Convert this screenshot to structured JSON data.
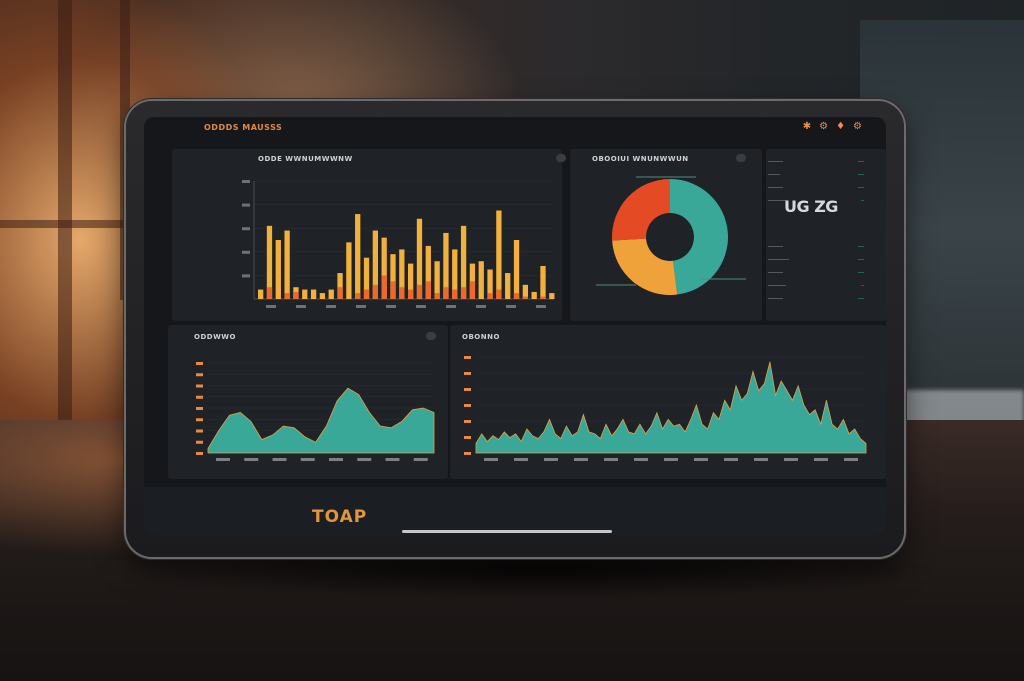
{
  "header": {
    "app_title": "ODDDS MAUSSS",
    "icons": [
      "gear-icon",
      "bell-icon",
      "user-icon",
      "menu-icon"
    ],
    "icon_glyphs": [
      "✱",
      "⚙",
      "♦",
      "⚙"
    ]
  },
  "sidebar": {
    "items": [
      {
        "label": "━━━━━",
        "active": true
      },
      {
        "label": "─────",
        "active": false
      },
      {
        "label": "━━━━",
        "active": true
      },
      {
        "label": "─────",
        "active": false
      },
      {
        "label": "─────",
        "active": false
      },
      {
        "label": "────",
        "active": false
      },
      {
        "label": "─────",
        "active": false
      },
      {
        "label": "─────",
        "active": false
      },
      {
        "label": "────",
        "active": false
      }
    ]
  },
  "panels": {
    "bar_title": "ODDE WWNUMWWNW",
    "donut_title": "OBOOIUI WNUNWWUN",
    "area1_title": "ODDWWO",
    "area2_title": "OBONNO",
    "stat_big": "UG ZG",
    "bottom_label": "TOAP"
  },
  "stats": {
    "rows": [
      {
        "label": "─────",
        "value": "──"
      },
      {
        "label": "────",
        "value": "──"
      },
      {
        "label": "─────",
        "value": "──"
      },
      {
        "label": "──────",
        "value": "─"
      },
      {
        "label": "─────",
        "value": "──"
      },
      {
        "label": "───────",
        "value": "──"
      },
      {
        "label": "─────",
        "value": "──"
      },
      {
        "label": "──────",
        "value": "─"
      },
      {
        "label": "─────",
        "value": "──"
      }
    ]
  },
  "colors": {
    "accent": "#f0a23a",
    "accent2": "#ea6a2c",
    "teal": "#39a898",
    "panel": "#1f2226",
    "screen": "#15171a"
  },
  "chart_data": [
    {
      "type": "bar",
      "series": [
        {
          "color": "#f2b03c",
          "values": [
            0.08,
            0.62,
            0.5,
            0.58,
            0.1,
            0.08,
            0.08,
            0.05,
            0.08,
            0.22,
            0.48,
            0.72,
            0.35,
            0.58,
            0.52,
            0.38,
            0.42,
            0.3,
            0.68,
            0.45,
            0.32,
            0.56,
            0.42,
            0.62,
            0.3,
            0.32,
            0.25,
            0.75,
            0.22,
            0.5,
            0.12,
            0.06,
            0.28,
            0.05
          ]
        },
        {
          "color": "#ea6a2c",
          "values": [
            0,
            0.1,
            0,
            0.05,
            0.06,
            0,
            0,
            0,
            0,
            0.1,
            0,
            0.05,
            0.08,
            0.12,
            0.2,
            0.15,
            0.1,
            0.08,
            0.12,
            0.15,
            0.05,
            0.1,
            0.08,
            0.1,
            0.15,
            0,
            0.05,
            0.08,
            0,
            0.05,
            0.02,
            0,
            0.02,
            0
          ]
        }
      ]
    },
    {
      "type": "pie",
      "slices": [
        {
          "value": 48,
          "color": "#3aa898"
        },
        {
          "value": 26,
          "color": "#f0a23a"
        },
        {
          "value": 26,
          "color": "#e44a24"
        }
      ]
    },
    {
      "type": "area",
      "color": "#3aa898",
      "values": [
        0.05,
        0.25,
        0.42,
        0.45,
        0.35,
        0.15,
        0.2,
        0.3,
        0.28,
        0.18,
        0.12,
        0.3,
        0.58,
        0.72,
        0.65,
        0.45,
        0.3,
        0.28,
        0.35,
        0.48,
        0.5,
        0.45
      ]
    },
    {
      "type": "area",
      "color": "#3aa898",
      "values": [
        0.1,
        0.2,
        0.12,
        0.18,
        0.14,
        0.22,
        0.16,
        0.2,
        0.12,
        0.25,
        0.18,
        0.15,
        0.22,
        0.35,
        0.2,
        0.15,
        0.28,
        0.18,
        0.22,
        0.4,
        0.22,
        0.2,
        0.15,
        0.3,
        0.18,
        0.25,
        0.35,
        0.22,
        0.2,
        0.3,
        0.2,
        0.28,
        0.42,
        0.25,
        0.35,
        0.28,
        0.3,
        0.22,
        0.35,
        0.5,
        0.3,
        0.25,
        0.42,
        0.35,
        0.55,
        0.45,
        0.7,
        0.55,
        0.62,
        0.85,
        0.65,
        0.72,
        0.95,
        0.6,
        0.75,
        0.65,
        0.55,
        0.7,
        0.5,
        0.4,
        0.45,
        0.3,
        0.55,
        0.3,
        0.25,
        0.35,
        0.2,
        0.25,
        0.15,
        0.1
      ]
    }
  ]
}
